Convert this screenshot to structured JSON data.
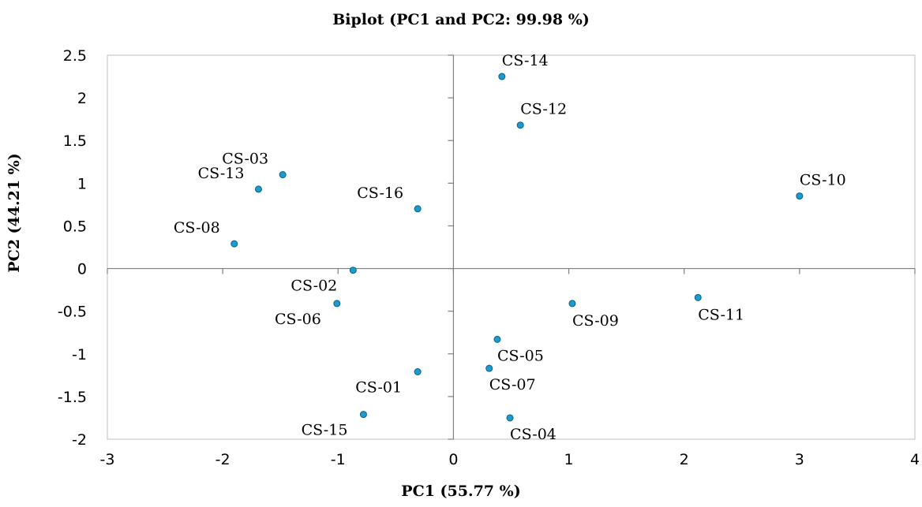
{
  "chart_data": {
    "type": "scatter",
    "title": "Biplot (PC1 and PC2:  99.98 %)",
    "xlabel": "PC1 (55.77 %)",
    "ylabel": "PC2  (44.21 %)",
    "xlim": [
      -3,
      4
    ],
    "ylim": [
      -2,
      2.5
    ],
    "x_ticks": [
      -3,
      -2,
      -1,
      0,
      1,
      2,
      3,
      4
    ],
    "y_ticks": [
      -2,
      -1.5,
      -1,
      -0.5,
      0,
      0.5,
      1,
      1.5,
      2,
      2.5
    ],
    "grid": false,
    "marker_color": "#1a9ccf",
    "marker_edge_color": "#0d5f80",
    "points": [
      {
        "label": "CS-14",
        "x": 0.42,
        "y": 2.25,
        "label_pos": "above-right"
      },
      {
        "label": "CS-12",
        "x": 0.58,
        "y": 1.68,
        "label_pos": "above-right"
      },
      {
        "label": "CS-10",
        "x": 3.0,
        "y": 0.85,
        "label_pos": "above"
      },
      {
        "label": "CS-03",
        "x": -1.48,
        "y": 1.1,
        "label_pos": "above-left"
      },
      {
        "label": "CS-13",
        "x": -1.69,
        "y": 0.93,
        "label_pos": "above-left"
      },
      {
        "label": "CS-16",
        "x": -0.31,
        "y": 0.7,
        "label_pos": "above-left"
      },
      {
        "label": "CS-08",
        "x": -1.9,
        "y": 0.29,
        "label_pos": "above-left"
      },
      {
        "label": "CS-02",
        "x": -0.87,
        "y": -0.02,
        "label_pos": "below-left"
      },
      {
        "label": "CS-06",
        "x": -1.01,
        "y": -0.41,
        "label_pos": "below-left"
      },
      {
        "label": "CS-09",
        "x": 1.03,
        "y": -0.41,
        "label_pos": "below"
      },
      {
        "label": "CS-11",
        "x": 2.12,
        "y": -0.34,
        "label_pos": "below"
      },
      {
        "label": "CS-05",
        "x": 0.38,
        "y": -0.83,
        "label_pos": "below-right"
      },
      {
        "label": "CS-07",
        "x": 0.31,
        "y": -1.17,
        "label_pos": "below-right"
      },
      {
        "label": "CS-01",
        "x": -0.31,
        "y": -1.21,
        "label_pos": "below-left"
      },
      {
        "label": "CS-15",
        "x": -0.78,
        "y": -1.71,
        "label_pos": "below-left"
      },
      {
        "label": "CS-04",
        "x": 0.49,
        "y": -1.75,
        "label_pos": "below-right"
      }
    ]
  }
}
